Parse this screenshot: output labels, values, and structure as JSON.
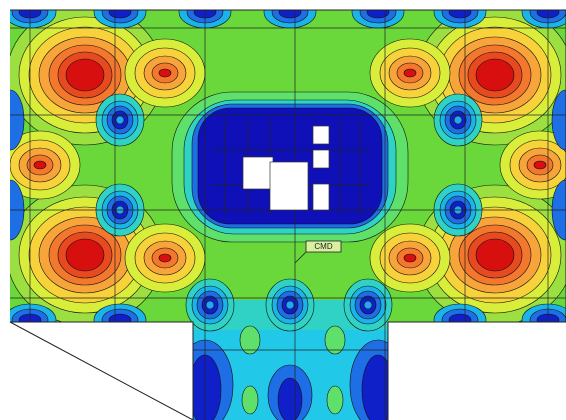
{
  "label": "CMD"
}
